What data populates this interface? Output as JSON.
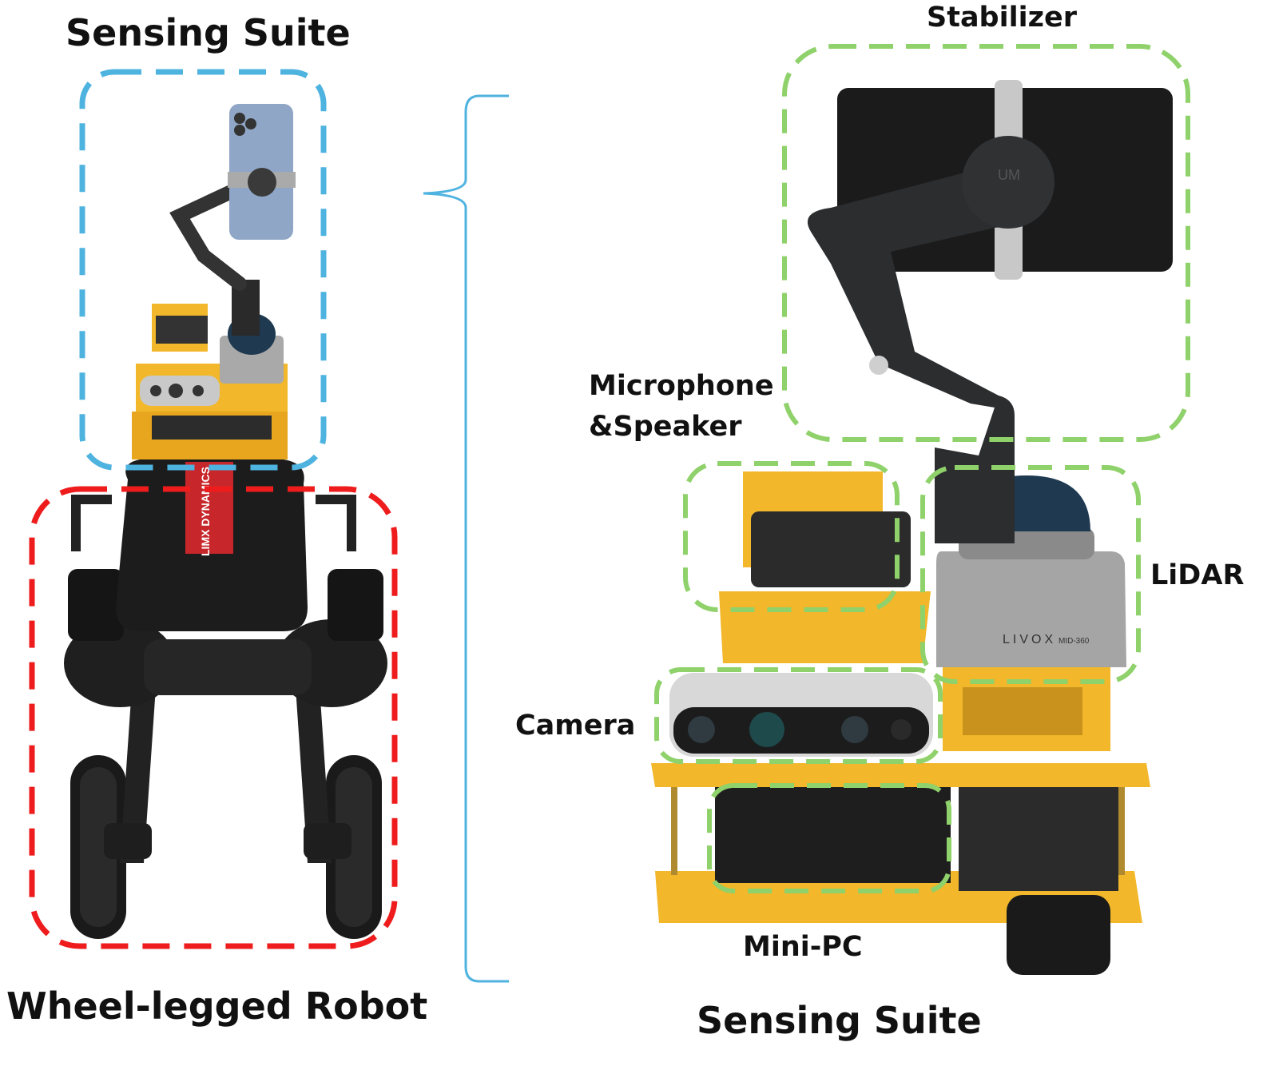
{
  "left": {
    "top_title": "Sensing Suite",
    "bottom_title": "Wheel-legged Robot",
    "badge_text": "LIMX DYNAMICS"
  },
  "right": {
    "bottom_title": "Sensing Suite",
    "labels": {
      "stabilizer": "Stabilizer",
      "microphone_line1": "Microphone",
      "microphone_line2": "&Speaker",
      "lidar": "LiDAR",
      "camera": "Camera",
      "mini_pc": "Mini-PC"
    },
    "device_texts": {
      "lidar_brand": "LIVOX",
      "lidar_model": "MID-360",
      "gimbal_brand": "UM"
    }
  },
  "colors": {
    "blue_box": "#4fb3e0",
    "red_box": "#ee1c1c",
    "green_box": "#8fd16a",
    "bracket": "#4fb3e0",
    "frame_yellow": "#f2b72a",
    "robot_black": "#1c1c1c"
  }
}
